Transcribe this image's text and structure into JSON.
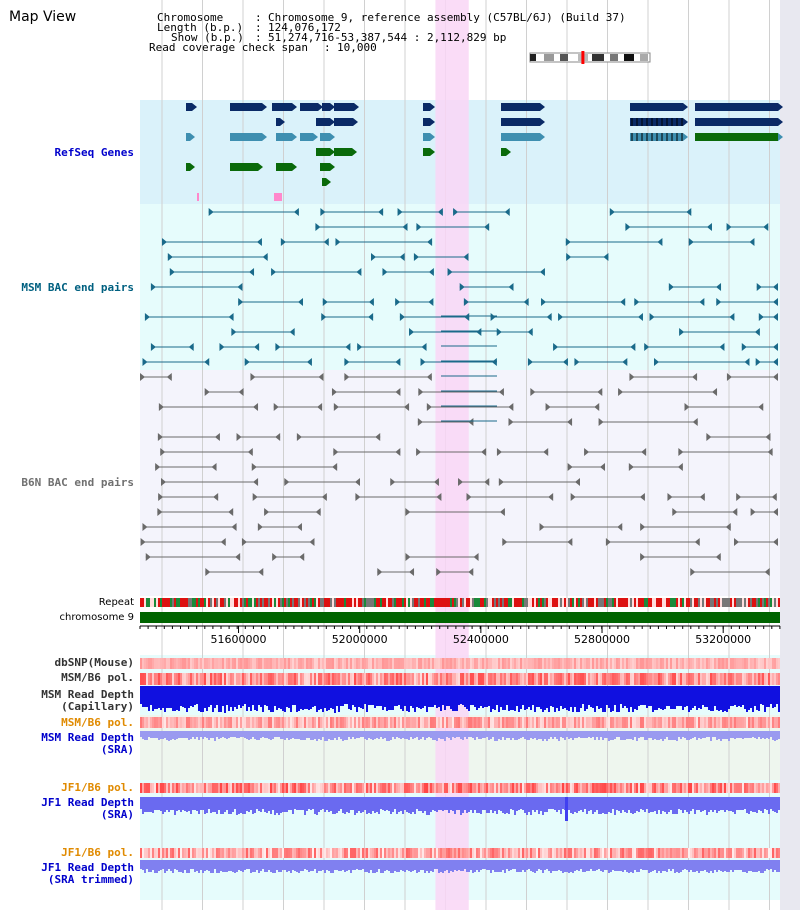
{
  "title": "Map View",
  "header": {
    "chromosome_label": "Chromosome",
    "chromosome_value": "Chromosome 9, reference assembly (C57BL/6J) (Build 37)",
    "length_label": "Length (b.p.)",
    "length_value": "124,076,172",
    "show_label": "Show (b.p.)",
    "show_value": "51,274,716-53,387,544 : 2,112,829 bp",
    "coverage_label": "Read coverage check span",
    "coverage_value": "10,000"
  },
  "view": {
    "start_bp": 51274716,
    "end_bp": 53387544,
    "highlight_start_bp": 52250000,
    "highlight_end_bp": 52360000
  },
  "ideogram": {
    "selected_fraction": 0.42
  },
  "axis_ticks": [
    "51600000",
    "52000000",
    "52400000",
    "52800000",
    "53200000"
  ],
  "axis_tick_values": [
    51600000,
    52000000,
    52400000,
    52800000,
    53200000
  ],
  "tracks": {
    "refseq": {
      "label": "RefSeq Genes",
      "color": "#0000cc"
    },
    "msm_bac": {
      "label": "MSM BAC end pairs",
      "color": "#006080"
    },
    "b6n_bac": {
      "label": "B6N BAC end pairs",
      "color": "#707070"
    },
    "repeat": {
      "label": "Repeat"
    },
    "chromosome": {
      "label": "chromosome 9"
    },
    "dbsnp": {
      "label": "dbSNP(Mouse)"
    },
    "msm_pol": {
      "label": "MSM/B6 pol."
    },
    "msm_depth_cap": {
      "label1": "MSM Read Depth",
      "label2": "(Capillary)"
    },
    "msm_pol2": {
      "label": "MSM/B6 pol."
    },
    "msm_depth_sra": {
      "label1": "MSM Read Depth",
      "label2": "(SRA)"
    },
    "jf1_pol": {
      "label": "JF1/B6 pol."
    },
    "jf1_depth": {
      "label1": "JF1 Read Depth",
      "label2": "(SRA)"
    },
    "jf1_pol2": {
      "label": "JF1/B6 pol."
    },
    "jf1_depth_trim": {
      "label1": "JF1 Read Depth",
      "label2": "(SRA trimmed)"
    }
  },
  "colors": {
    "refseq_bg": "#daf2fa",
    "msm_bg": "#e6fcfc",
    "b6n_bg": "#f4f4fc",
    "highlight": "#f9d6f6",
    "gene_dark": "#0a2a66",
    "gene_mid": "#3e8fb0",
    "gene_green": "#0a6a0a",
    "chrom_green": "#006400",
    "label_blue": "#0000cc",
    "label_orange": "#e08a00"
  }
}
